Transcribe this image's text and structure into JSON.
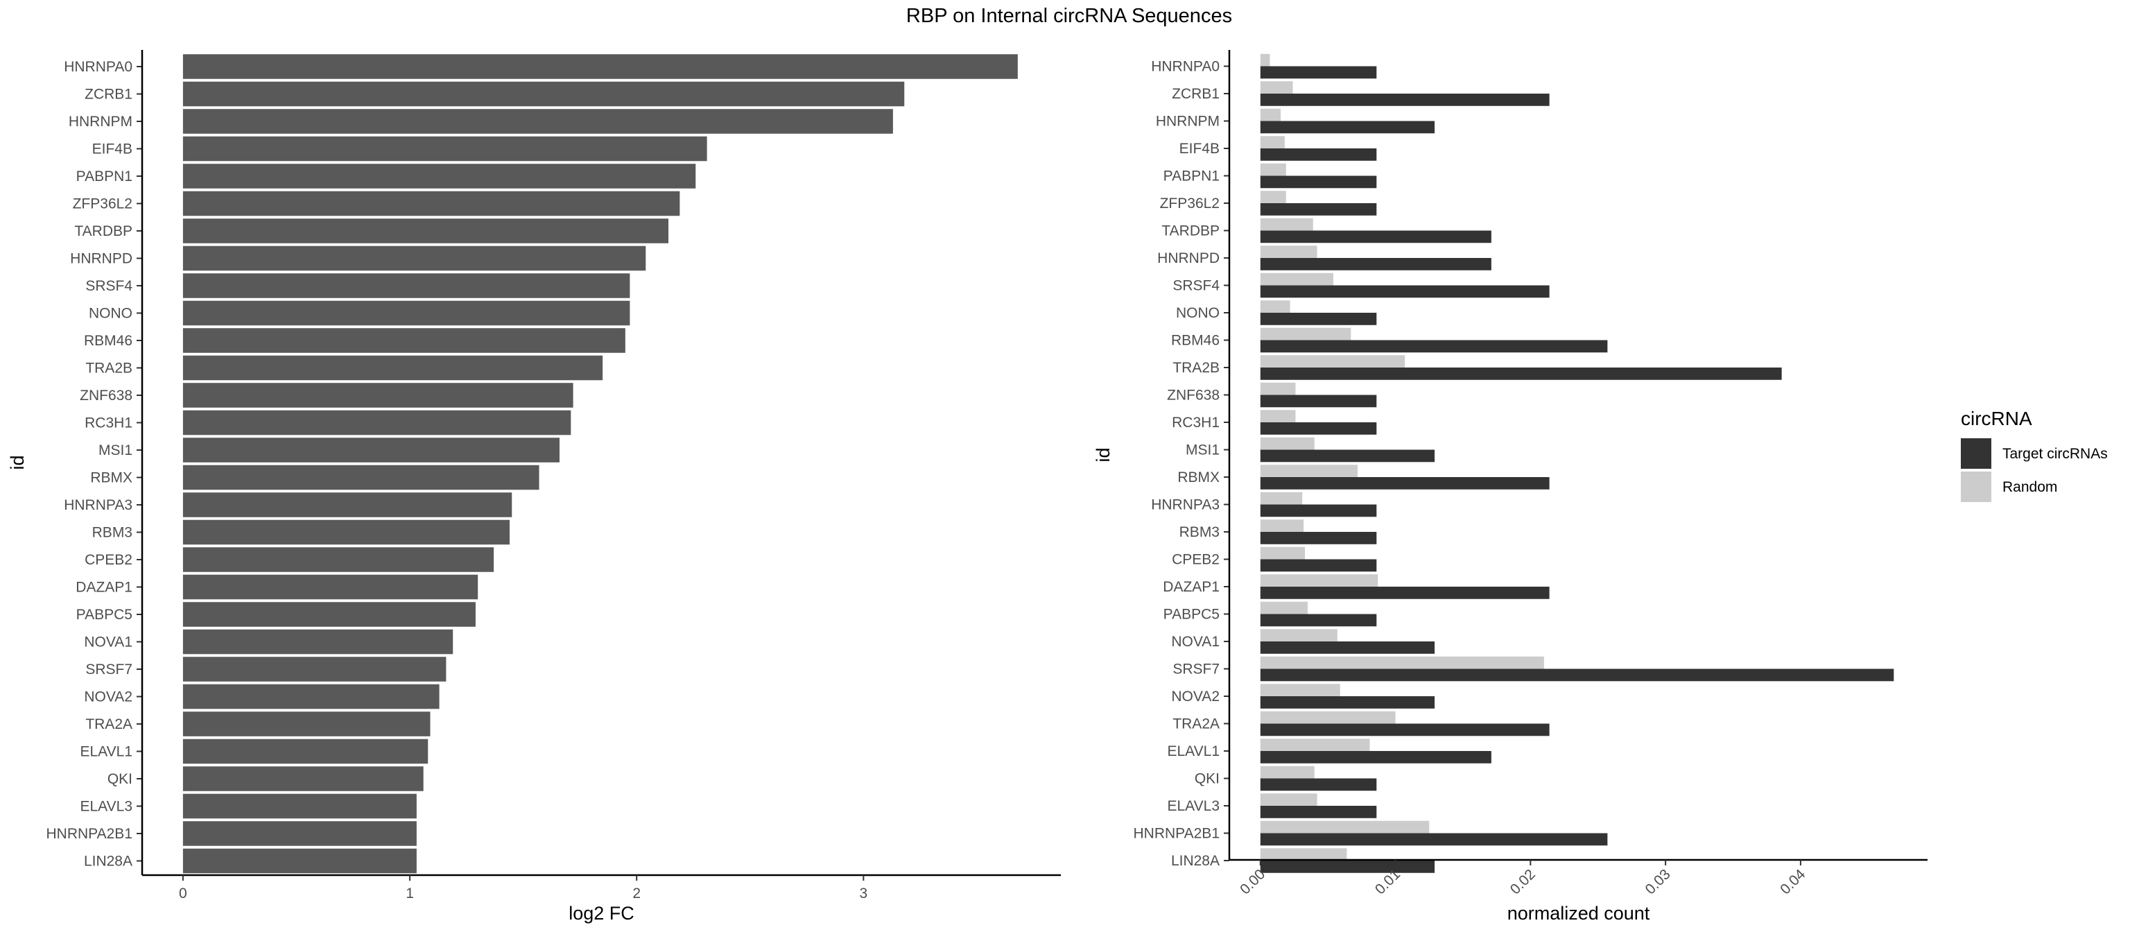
{
  "title": "RBP on Internal circRNA Sequences",
  "colors": {
    "left_bar": "#595959",
    "target": "#333333",
    "random": "#cccccc",
    "axis": "#000000",
    "tick_text": "#4d4d4d"
  },
  "chart_data": [
    {
      "type": "bar",
      "orientation": "horizontal",
      "xlabel": "log2 FC",
      "ylabel": "id",
      "xlim": [
        -0.18,
        3.87
      ],
      "xticks": [
        0,
        1,
        2,
        3
      ],
      "xtick_labels": [
        "0",
        "1",
        "2",
        "3"
      ],
      "categories": [
        "HNRNPA0",
        "ZCRB1",
        "HNRNPM",
        "EIF4B",
        "PABPN1",
        "ZFP36L2",
        "TARDBP",
        "HNRNPD",
        "SRSF4",
        "NONO",
        "RBM46",
        "TRA2B",
        "ZNF638",
        "RC3H1",
        "MSI1",
        "RBMX",
        "HNRNPA3",
        "RBM3",
        "CPEB2",
        "DAZAP1",
        "PABPC5",
        "NOVA1",
        "SRSF7",
        "NOVA2",
        "TRA2A",
        "ELAVL1",
        "QKI",
        "ELAVL3",
        "HNRNPA2B1",
        "LIN28A"
      ],
      "values": [
        3.68,
        3.18,
        3.13,
        2.31,
        2.26,
        2.19,
        2.14,
        2.04,
        1.97,
        1.97,
        1.95,
        1.85,
        1.72,
        1.71,
        1.66,
        1.57,
        1.45,
        1.44,
        1.37,
        1.3,
        1.29,
        1.19,
        1.16,
        1.13,
        1.09,
        1.08,
        1.06,
        1.03,
        1.03,
        1.03
      ]
    },
    {
      "type": "bar",
      "orientation": "horizontal",
      "grouped": true,
      "xlabel": "normalized count",
      "ylabel": "id",
      "xlim": [
        -0.0023,
        0.0494
      ],
      "xticks": [
        0.0,
        0.01,
        0.02,
        0.03,
        0.04
      ],
      "xtick_labels": [
        "0.00",
        "0.01",
        "0.02",
        "0.03",
        "0.04"
      ],
      "legend": {
        "title": "circRNA",
        "entries": [
          "Target circRNAs",
          "Random"
        ],
        "placement": "right"
      },
      "categories": [
        "HNRNPA0",
        "ZCRB1",
        "HNRNPM",
        "EIF4B",
        "PABPN1",
        "ZFP36L2",
        "TARDBP",
        "HNRNPD",
        "SRSF4",
        "NONO",
        "RBM46",
        "TRA2B",
        "ZNF638",
        "RC3H1",
        "MSI1",
        "RBMX",
        "HNRNPA3",
        "RBM3",
        "CPEB2",
        "DAZAP1",
        "PABPC5",
        "NOVA1",
        "SRSF7",
        "NOVA2",
        "TRA2A",
        "ELAVL1",
        "QKI",
        "ELAVL3",
        "HNRNPA2B1",
        "LIN28A"
      ],
      "series": [
        {
          "name": "Target circRNAs",
          "values": [
            0.0086,
            0.0214,
            0.0129,
            0.0086,
            0.0086,
            0.0086,
            0.0171,
            0.0171,
            0.0214,
            0.0086,
            0.0257,
            0.0386,
            0.0086,
            0.0086,
            0.0129,
            0.0214,
            0.0086,
            0.0086,
            0.0086,
            0.0214,
            0.0086,
            0.0129,
            0.0469,
            0.0129,
            0.0214,
            0.0171,
            0.0086,
            0.0086,
            0.0257,
            0.0129
          ]
        },
        {
          "name": "Random",
          "values": [
            0.0007,
            0.0024,
            0.0015,
            0.0018,
            0.0019,
            0.0019,
            0.0039,
            0.0042,
            0.0054,
            0.0022,
            0.0067,
            0.0107,
            0.0026,
            0.0026,
            0.004,
            0.0072,
            0.0031,
            0.0032,
            0.0033,
            0.0087,
            0.0035,
            0.0057,
            0.021,
            0.0059,
            0.01,
            0.0081,
            0.004,
            0.0042,
            0.0125,
            0.0064
          ]
        }
      ]
    }
  ]
}
